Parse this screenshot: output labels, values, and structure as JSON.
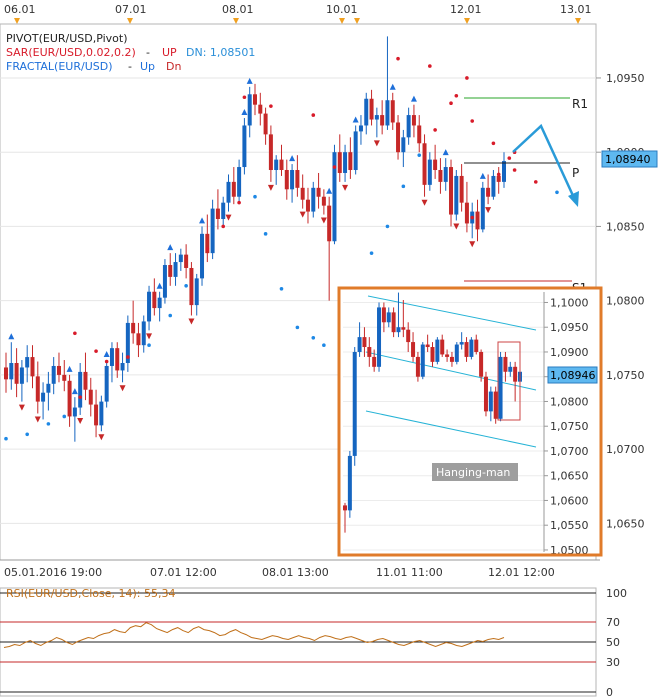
{
  "colors": {
    "bull": "#1565c0",
    "bear": "#c62828",
    "sar": "#d81b2a",
    "fractal_up": "#1e6fd9",
    "rsi": "#c0701a",
    "inset_border": "#e07b2a",
    "channel": "#26b3d6",
    "r1": "#2aa52a",
    "s1": "#c62828",
    "arrow": "#2a9bd8",
    "marker": "#f0a020"
  },
  "header": {
    "legend_pivot": "PIVOT(EUR/USD,Pivot)",
    "legend_sar_name": "SAR(EUR/USD,0.02,0.2)",
    "legend_sar_up": "UP",
    "legend_sar_dn": "DN: 1,08501",
    "legend_fractal_name": "FRACTAL(EUR/USD)",
    "legend_fractal_up": "Up",
    "legend_fractal_dn": "Dn",
    "top_dates": [
      "06.01",
      "07.01",
      "08.01",
      "10.01",
      "12.01",
      "13.01"
    ]
  },
  "main_chart": {
    "type": "candlestick",
    "y_ticks": [
      "1,0950",
      "1,0900",
      "1,0850",
      "1,0800",
      "1,0750",
      "1,0700",
      "1,0650"
    ],
    "ylim": [
      1.0628,
      1.0985
    ],
    "current_price_label": "1,08940",
    "pivot_labels": {
      "r1": "R1",
      "p": "P",
      "s1": "S1"
    },
    "levels": {
      "r1": 1.0935,
      "p": 1.0891,
      "s1": 1.0813
    },
    "x_labels": [
      "05.01.2016 19:00",
      "07.01 12:00",
      "08.01 13:00",
      "11.01 11:00",
      "12.01 12:00"
    ],
    "candles": [
      [
        1.0755,
        1.0765,
        1.0738,
        1.0747
      ],
      [
        1.0747,
        1.0772,
        1.074,
        1.0758
      ],
      [
        1.0758,
        1.0768,
        1.0735,
        1.0744
      ],
      [
        1.0744,
        1.076,
        1.0732,
        1.0755
      ],
      [
        1.0755,
        1.077,
        1.0745,
        1.0762
      ],
      [
        1.0762,
        1.077,
        1.0741,
        1.0749
      ],
      [
        1.0749,
        1.0759,
        1.0724,
        1.0732
      ],
      [
        1.0732,
        1.0745,
        1.072,
        1.0738
      ],
      [
        1.0738,
        1.0752,
        1.0726,
        1.0744
      ],
      [
        1.0744,
        1.0762,
        1.0737,
        1.0756
      ],
      [
        1.0756,
        1.0765,
        1.0745,
        1.075
      ],
      [
        1.075,
        1.076,
        1.0739,
        1.0746
      ],
      [
        1.0746,
        1.075,
        1.0715,
        1.0722
      ],
      [
        1.0722,
        1.0735,
        1.0705,
        1.0728
      ],
      [
        1.0728,
        1.0758,
        1.0723,
        1.0752
      ],
      [
        1.0752,
        1.0765,
        1.0733,
        1.074
      ],
      [
        1.074,
        1.0748,
        1.0722,
        1.073
      ],
      [
        1.073,
        1.074,
        1.0708,
        1.0716
      ],
      [
        1.0716,
        1.0736,
        1.0712,
        1.0732
      ],
      [
        1.0732,
        1.076,
        1.0728,
        1.0756
      ],
      [
        1.0756,
        1.0772,
        1.0745,
        1.0768
      ],
      [
        1.0768,
        1.0772,
        1.0748,
        1.0753
      ],
      [
        1.0753,
        1.0765,
        1.0745,
        1.0758
      ],
      [
        1.0758,
        1.079,
        1.0752,
        1.0785
      ],
      [
        1.0785,
        1.08,
        1.0771,
        1.0778
      ],
      [
        1.0778,
        1.0785,
        1.0762,
        1.077
      ],
      [
        1.077,
        1.079,
        1.0765,
        1.0786
      ],
      [
        1.0786,
        1.081,
        1.078,
        1.0806
      ],
      [
        1.0806,
        1.0815,
        1.079,
        1.0795
      ],
      [
        1.0795,
        1.0806,
        1.0786,
        1.0802
      ],
      [
        1.0802,
        1.0828,
        1.0798,
        1.0824
      ],
      [
        1.0824,
        1.0832,
        1.081,
        1.0816
      ],
      [
        1.0816,
        1.0832,
        1.081,
        1.0826
      ],
      [
        1.0826,
        1.0835,
        1.082,
        1.0831
      ],
      [
        1.0831,
        1.0838,
        1.0815,
        1.0822
      ],
      [
        1.0822,
        1.0826,
        1.079,
        1.0797
      ],
      [
        1.0797,
        1.0818,
        1.079,
        1.0815
      ],
      [
        1.0815,
        1.085,
        1.081,
        1.0845
      ],
      [
        1.0845,
        1.0858,
        1.0826,
        1.0832
      ],
      [
        1.0832,
        1.0868,
        1.0828,
        1.0862
      ],
      [
        1.0862,
        1.0875,
        1.0848,
        1.0855
      ],
      [
        1.0855,
        1.087,
        1.085,
        1.0866
      ],
      [
        1.0866,
        1.0885,
        1.086,
        1.088
      ],
      [
        1.088,
        1.089,
        1.0865,
        1.087
      ],
      [
        1.087,
        1.0895,
        1.0866,
        1.089
      ],
      [
        1.089,
        1.0923,
        1.0885,
        1.0918
      ],
      [
        1.0918,
        1.0944,
        1.091,
        1.0939
      ],
      [
        1.0939,
        1.0946,
        1.0925,
        1.0932
      ],
      [
        1.0932,
        1.094,
        1.0918,
        1.0926
      ],
      [
        1.0926,
        1.093,
        1.0905,
        1.0912
      ],
      [
        1.0912,
        1.0918,
        1.088,
        1.0888
      ],
      [
        1.0888,
        1.0898,
        1.0878,
        1.0895
      ],
      [
        1.0895,
        1.0905,
        1.0884,
        1.0888
      ],
      [
        1.0888,
        1.0895,
        1.0868,
        1.0875
      ],
      [
        1.0875,
        1.0892,
        1.0866,
        1.0888
      ],
      [
        1.0888,
        1.0898,
        1.087,
        1.0876
      ],
      [
        1.0876,
        1.0885,
        1.0862,
        1.0868
      ],
      [
        1.0868,
        1.0876,
        1.0852,
        1.086
      ],
      [
        1.086,
        1.088,
        1.0856,
        1.0876
      ],
      [
        1.0876,
        1.0886,
        1.0862,
        1.087
      ],
      [
        1.087,
        1.0875,
        1.0858,
        1.0864
      ],
      [
        1.0864,
        1.087,
        1.08,
        1.084
      ],
      [
        1.084,
        1.0905,
        1.0838,
        1.09
      ],
      [
        1.09,
        1.0912,
        1.088,
        1.0886
      ],
      [
        1.0886,
        1.0905,
        1.088,
        1.09
      ],
      [
        1.09,
        1.091,
        1.0882,
        1.0888
      ],
      [
        1.0888,
        1.0918,
        1.0885,
        1.0914
      ],
      [
        1.0914,
        1.0925,
        1.0905,
        1.0918
      ],
      [
        1.0918,
        1.094,
        1.0912,
        1.0936
      ],
      [
        1.0936,
        1.0942,
        1.0918,
        1.0922
      ],
      [
        1.0922,
        1.093,
        1.091,
        1.0925
      ],
      [
        1.0925,
        1.0935,
        1.0912,
        1.0918
      ],
      [
        1.0918,
        1.0978,
        1.0915,
        1.0935
      ],
      [
        1.0935,
        1.094,
        1.0915,
        1.092
      ],
      [
        1.092,
        1.0925,
        1.0895,
        1.09
      ],
      [
        1.09,
        1.0915,
        1.089,
        1.091
      ],
      [
        1.091,
        1.093,
        1.0905,
        1.0925
      ],
      [
        1.0925,
        1.0932,
        1.091,
        1.0918
      ],
      [
        1.0918,
        1.0925,
        1.09,
        1.0906
      ],
      [
        1.0906,
        1.0912,
        1.087,
        1.0878
      ],
      [
        1.0878,
        1.09,
        1.0874,
        1.0895
      ],
      [
        1.0895,
        1.0905,
        1.0882,
        1.0888
      ],
      [
        1.0888,
        1.0896,
        1.0872,
        1.088
      ],
      [
        1.088,
        1.0896,
        1.0874,
        1.089
      ],
      [
        1.089,
        1.0895,
        1.085,
        1.0858
      ],
      [
        1.0858,
        1.0888,
        1.0854,
        1.0884
      ],
      [
        1.0884,
        1.0892,
        1.086,
        1.0866
      ],
      [
        1.0866,
        1.088,
        1.0846,
        1.0852
      ],
      [
        1.0852,
        1.0866,
        1.0842,
        1.086
      ],
      [
        1.086,
        1.0868,
        1.084,
        1.0848
      ],
      [
        1.0848,
        1.088,
        1.0846,
        1.0876
      ],
      [
        1.0876,
        1.0885,
        1.0865,
        1.087
      ],
      [
        1.087,
        1.0888,
        1.0868,
        1.0884
      ],
      [
        1.0884,
        1.089,
        1.0872,
        1.088
      ],
      [
        1.088,
        1.09,
        1.0876,
        1.0894
      ]
    ],
    "sar": [
      [
        0,
        1.0707
      ],
      [
        4,
        1.071
      ],
      [
        8,
        1.0717
      ],
      [
        11,
        1.0722
      ],
      [
        14,
        1.0735
      ],
      [
        19,
        1.0759
      ],
      [
        23,
        1.0762
      ],
      [
        27,
        1.077
      ],
      [
        31,
        1.079
      ],
      [
        34,
        1.081
      ],
      [
        38,
        1.0835
      ],
      [
        41,
        1.085
      ],
      [
        44,
        1.0866
      ],
      [
        47,
        1.087
      ],
      [
        49,
        1.0845
      ],
      [
        52,
        1.0808
      ],
      [
        55,
        1.0782
      ],
      [
        58,
        1.0775
      ],
      [
        60,
        1.077
      ],
      [
        63,
        1.0795
      ],
      [
        66,
        1.0808
      ],
      [
        69,
        1.0832
      ],
      [
        72,
        1.085
      ],
      [
        75,
        1.0877
      ],
      [
        78,
        1.0898
      ],
      [
        81,
        1.0915
      ],
      [
        84,
        1.0933
      ],
      [
        87,
        1.095
      ],
      [
        88,
        1.0856
      ],
      [
        91,
        1.0872
      ],
      [
        93,
        1.0885
      ],
      [
        95,
        1.0896
      ],
      [
        96,
        1.09
      ],
      [
        13,
        1.0778
      ],
      [
        17,
        1.0766
      ],
      [
        21,
        1.0757
      ],
      [
        45,
        1.0937
      ],
      [
        50,
        1.0931
      ],
      [
        58,
        1.0925
      ],
      [
        62,
        1.089
      ],
      [
        74,
        1.0963
      ],
      [
        80,
        1.0958
      ],
      [
        85,
        1.0938
      ],
      [
        88,
        1.0921
      ],
      [
        92,
        1.0906
      ],
      [
        96,
        1.0888
      ],
      [
        100,
        1.088
      ],
      [
        104,
        1.0873
      ]
    ],
    "fractal_up_idx": [
      1,
      12,
      13,
      19,
      29,
      31,
      37,
      45,
      46,
      54,
      61,
      66,
      73,
      77,
      83,
      90,
      95
    ],
    "fractal_dn_idx": [
      3,
      6,
      14,
      18,
      22,
      27,
      35,
      42,
      50,
      56,
      60,
      64,
      70,
      79,
      85,
      88,
      91
    ]
  },
  "inset_chart": {
    "type": "candlestick",
    "y_ticks": [
      "1,1000",
      "1,0950",
      "1,0900",
      "1,0850",
      "1,0800",
      "1,0750",
      "1,0700",
      "1,0650",
      "1,0600",
      "1,0550",
      "1,0500"
    ],
    "ylim": [
      1.051,
      1.1005
    ],
    "price_label": "1,08946",
    "annotation": "Hanging-man",
    "candles": [
      [
        1.059,
        1.0595,
        1.0535,
        1.058
      ],
      [
        1.058,
        1.07,
        1.0565,
        1.069
      ],
      [
        1.069,
        1.091,
        1.067,
        1.09
      ],
      [
        1.09,
        1.096,
        1.089,
        1.093
      ],
      [
        1.093,
        1.095,
        1.089,
        1.091
      ],
      [
        1.091,
        1.093,
        1.087,
        1.089
      ],
      [
        1.089,
        1.0905,
        1.086,
        1.087
      ],
      [
        1.087,
        1.1,
        1.086,
        1.099
      ],
      [
        1.099,
        1.1,
        1.094,
        1.096
      ],
      [
        1.096,
        1.099,
        1.095,
        1.098
      ],
      [
        1.098,
        1.099,
        1.093,
        1.094
      ],
      [
        1.094,
        1.102,
        1.093,
        1.095
      ],
      [
        1.095,
        1.1005,
        1.093,
        1.0945
      ],
      [
        1.0945,
        1.096,
        1.09,
        1.092
      ],
      [
        1.092,
        1.094,
        1.088,
        1.089
      ],
      [
        1.089,
        1.09,
        1.084,
        1.085
      ],
      [
        1.085,
        1.092,
        1.0845,
        1.0915
      ],
      [
        1.0915,
        1.0935,
        1.09,
        1.091
      ],
      [
        1.091,
        1.092,
        1.087,
        1.088
      ],
      [
        1.088,
        1.093,
        1.0875,
        1.0925
      ],
      [
        1.0925,
        1.0935,
        1.089,
        1.0895
      ],
      [
        1.0895,
        1.0905,
        1.088,
        1.089
      ],
      [
        1.089,
        1.09,
        1.087,
        1.088
      ],
      [
        1.088,
        1.092,
        1.0875,
        1.0915
      ],
      [
        1.0915,
        1.094,
        1.0905,
        1.092
      ],
      [
        1.092,
        1.093,
        1.088,
        1.089
      ],
      [
        1.089,
        1.093,
        1.0885,
        1.0925
      ],
      [
        1.0925,
        1.0935,
        1.0895,
        1.09
      ],
      [
        1.09,
        1.0905,
        1.084,
        1.085
      ],
      [
        1.085,
        1.086,
        1.077,
        1.078
      ],
      [
        1.078,
        1.083,
        1.076,
        1.082
      ],
      [
        1.082,
        1.083,
        1.0755,
        1.0765
      ],
      [
        1.0765,
        1.09,
        1.076,
        1.089
      ],
      [
        1.089,
        1.09,
        1.084,
        1.086
      ],
      [
        1.086,
        1.088,
        1.085,
        1.087
      ],
      [
        1.087,
        1.088,
        1.08,
        1.084
      ],
      [
        1.084,
        1.088,
        1.083,
        1.086
      ]
    ]
  },
  "rsi": {
    "label": "RSI(EUR/USD,Close, 14): 55,34",
    "y_ticks": [
      "100",
      "70",
      "50",
      "30",
      "0"
    ],
    "values": [
      45,
      46,
      48,
      47,
      50,
      52,
      49,
      47,
      50,
      52,
      55,
      53,
      50,
      48,
      51,
      53,
      55,
      54,
      57,
      59,
      60,
      63,
      61,
      60,
      65,
      67,
      66,
      70,
      68,
      64,
      62,
      60,
      63,
      65,
      62,
      60,
      64,
      66,
      63,
      62,
      60,
      57,
      58,
      61,
      63,
      60,
      58,
      55,
      54,
      53,
      55,
      57,
      56,
      54,
      53,
      55,
      57,
      55,
      54,
      52,
      55,
      57,
      56,
      54,
      53,
      55,
      56,
      54,
      52,
      50,
      51,
      53,
      54,
      52,
      50,
      48,
      47,
      49,
      51,
      52,
      50,
      48,
      46,
      48,
      50,
      49,
      47,
      46,
      48,
      50,
      52,
      51,
      53,
      54,
      53,
      55
    ]
  }
}
